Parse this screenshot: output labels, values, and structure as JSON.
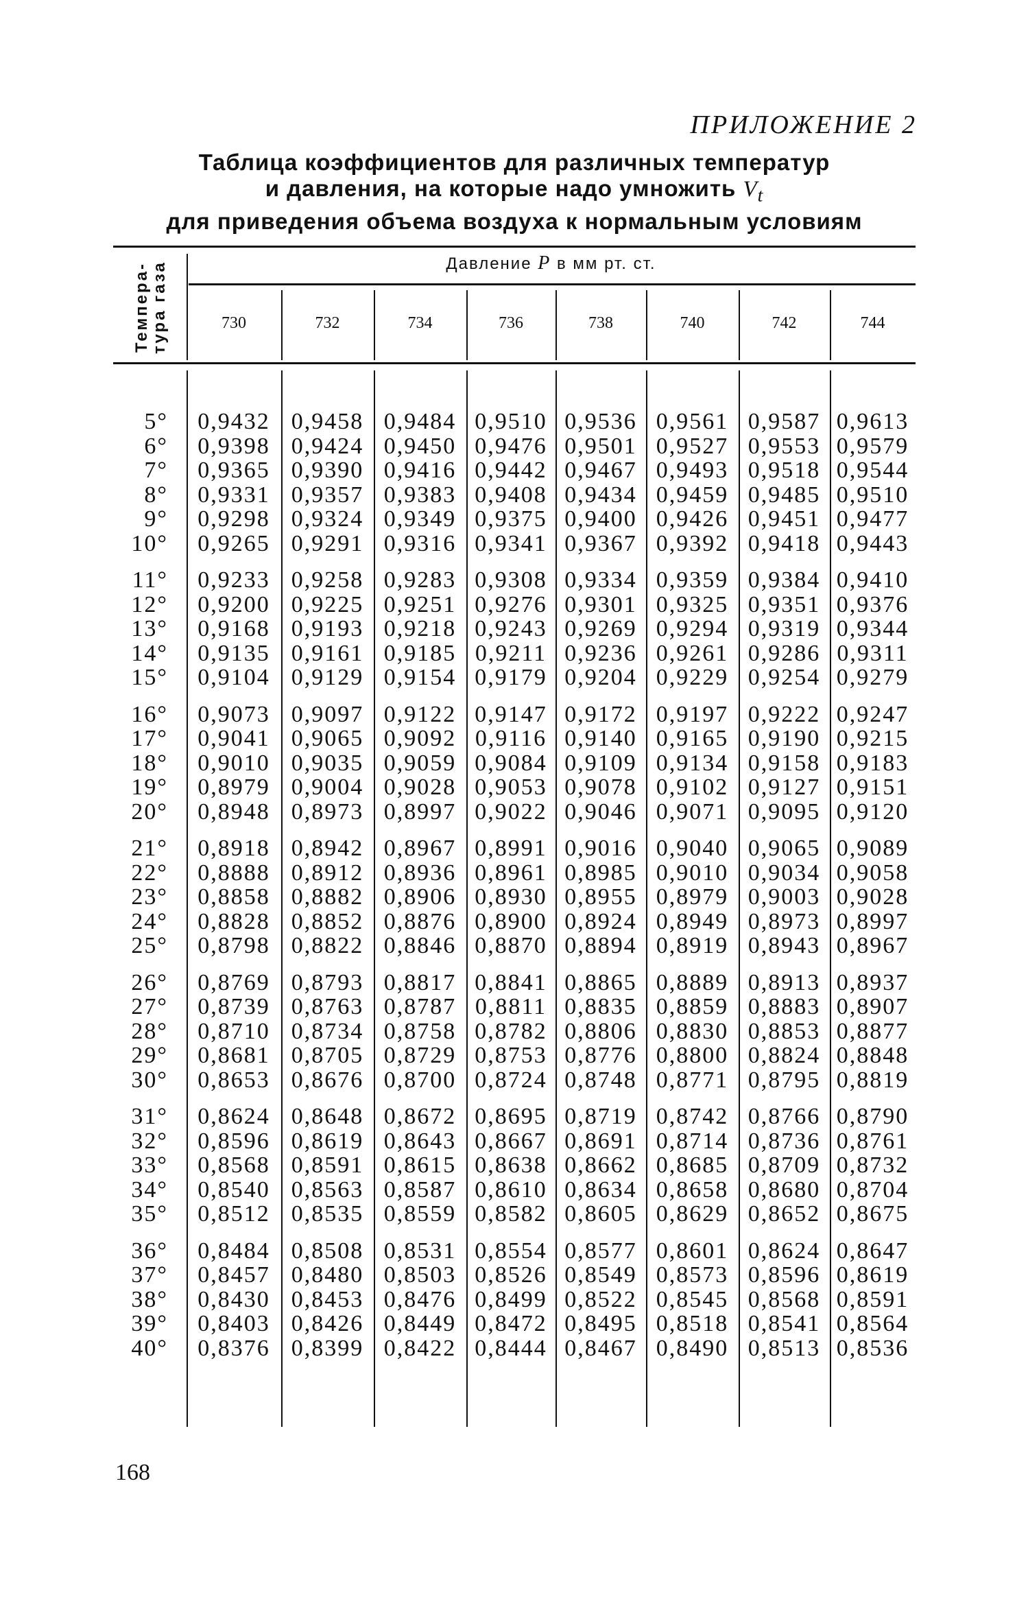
{
  "appendix_label": "ПРИЛОЖЕНИЕ 2",
  "title": {
    "line1": "Таблица коэффициентов для различных температур",
    "line2": "и давления, на которые надо умножить",
    "line2_var": "V",
    "line2_sub": "t",
    "line3": "для приведения объема воздуха к нормальным условиям"
  },
  "table": {
    "temp_header_line1": "Темпера-",
    "temp_header_line2": "тура газа",
    "pressure_header": "Давление",
    "pressure_var": "P",
    "pressure_unit": "в мм рт. ст.",
    "columns": [
      "730",
      "732",
      "734",
      "736",
      "738",
      "740",
      "742",
      "744"
    ],
    "groups": [
      [
        {
          "t": "5°",
          "v": [
            "0,9432",
            "0,9458",
            "0,9484",
            "0,9510",
            "0,9536",
            "0,9561",
            "0,9587",
            "0,9613"
          ]
        },
        {
          "t": "6°",
          "v": [
            "0,9398",
            "0,9424",
            "0,9450",
            "0,9476",
            "0,9501",
            "0,9527",
            "0,9553",
            "0,9579"
          ]
        },
        {
          "t": "7°",
          "v": [
            "0,9365",
            "0,9390",
            "0,9416",
            "0,9442",
            "0,9467",
            "0,9493",
            "0,9518",
            "0,9544"
          ]
        },
        {
          "t": "8°",
          "v": [
            "0,9331",
            "0,9357",
            "0,9383",
            "0,9408",
            "0,9434",
            "0,9459",
            "0,9485",
            "0,9510"
          ]
        },
        {
          "t": "9°",
          "v": [
            "0,9298",
            "0,9324",
            "0,9349",
            "0,9375",
            "0,9400",
            "0,9426",
            "0,9451",
            "0,9477"
          ]
        },
        {
          "t": "10°",
          "v": [
            "0,9265",
            "0,9291",
            "0,9316",
            "0,9341",
            "0,9367",
            "0,9392",
            "0,9418",
            "0,9443"
          ]
        }
      ],
      [
        {
          "t": "11°",
          "v": [
            "0,9233",
            "0,9258",
            "0,9283",
            "0,9308",
            "0,9334",
            "0,9359",
            "0,9384",
            "0,9410"
          ]
        },
        {
          "t": "12°",
          "v": [
            "0,9200",
            "0,9225",
            "0,9251",
            "0,9276",
            "0,9301",
            "0,9325",
            "0,9351",
            "0,9376"
          ]
        },
        {
          "t": "13°",
          "v": [
            "0,9168",
            "0,9193",
            "0,9218",
            "0,9243",
            "0,9269",
            "0,9294",
            "0,9319",
            "0,9344"
          ]
        },
        {
          "t": "14°",
          "v": [
            "0,9135",
            "0,9161",
            "0,9185",
            "0,9211",
            "0,9236",
            "0,9261",
            "0,9286",
            "0,9311"
          ]
        },
        {
          "t": "15°",
          "v": [
            "0,9104",
            "0,9129",
            "0,9154",
            "0,9179",
            "0,9204",
            "0,9229",
            "0,9254",
            "0,9279"
          ]
        }
      ],
      [
        {
          "t": "16°",
          "v": [
            "0,9073",
            "0,9097",
            "0,9122",
            "0,9147",
            "0,9172",
            "0,9197",
            "0,9222",
            "0,9247"
          ]
        },
        {
          "t": "17°",
          "v": [
            "0,9041",
            "0,9065",
            "0,9092",
            "0,9116",
            "0,9140",
            "0,9165",
            "0,9190",
            "0,9215"
          ]
        },
        {
          "t": "18°",
          "v": [
            "0,9010",
            "0,9035",
            "0,9059",
            "0,9084",
            "0,9109",
            "0,9134",
            "0,9158",
            "0,9183"
          ]
        },
        {
          "t": "19°",
          "v": [
            "0,8979",
            "0,9004",
            "0,9028",
            "0,9053",
            "0,9078",
            "0,9102",
            "0,9127",
            "0,9151"
          ]
        },
        {
          "t": "20°",
          "v": [
            "0,8948",
            "0,8973",
            "0,8997",
            "0,9022",
            "0,9046",
            "0,9071",
            "0,9095",
            "0,9120"
          ]
        }
      ],
      [
        {
          "t": "21°",
          "v": [
            "0,8918",
            "0,8942",
            "0,8967",
            "0,8991",
            "0,9016",
            "0,9040",
            "0,9065",
            "0,9089"
          ]
        },
        {
          "t": "22°",
          "v": [
            "0,8888",
            "0,8912",
            "0,8936",
            "0,8961",
            "0,8985",
            "0,9010",
            "0,9034",
            "0,9058"
          ]
        },
        {
          "t": "23°",
          "v": [
            "0,8858",
            "0,8882",
            "0,8906",
            "0,8930",
            "0,8955",
            "0,8979",
            "0,9003",
            "0,9028"
          ]
        },
        {
          "t": "24°",
          "v": [
            "0,8828",
            "0,8852",
            "0,8876",
            "0,8900",
            "0,8924",
            "0,8949",
            "0,8973",
            "0,8997"
          ]
        },
        {
          "t": "25°",
          "v": [
            "0,8798",
            "0,8822",
            "0,8846",
            "0,8870",
            "0,8894",
            "0,8919",
            "0,8943",
            "0,8967"
          ]
        }
      ],
      [
        {
          "t": "26°",
          "v": [
            "0,8769",
            "0,8793",
            "0,8817",
            "0,8841",
            "0,8865",
            "0,8889",
            "0,8913",
            "0,8937"
          ]
        },
        {
          "t": "27°",
          "v": [
            "0,8739",
            "0,8763",
            "0,8787",
            "0,8811",
            "0,8835",
            "0,8859",
            "0,8883",
            "0,8907"
          ]
        },
        {
          "t": "28°",
          "v": [
            "0,8710",
            "0,8734",
            "0,8758",
            "0,8782",
            "0,8806",
            "0,8830",
            "0,8853",
            "0,8877"
          ]
        },
        {
          "t": "29°",
          "v": [
            "0,8681",
            "0,8705",
            "0,8729",
            "0,8753",
            "0,8776",
            "0,8800",
            "0,8824",
            "0,8848"
          ]
        },
        {
          "t": "30°",
          "v": [
            "0,8653",
            "0,8676",
            "0,8700",
            "0,8724",
            "0,8748",
            "0,8771",
            "0,8795",
            "0,8819"
          ]
        }
      ],
      [
        {
          "t": "31°",
          "v": [
            "0,8624",
            "0,8648",
            "0,8672",
            "0,8695",
            "0,8719",
            "0,8742",
            "0,8766",
            "0,8790"
          ]
        },
        {
          "t": "32°",
          "v": [
            "0,8596",
            "0,8619",
            "0,8643",
            "0,8667",
            "0,8691",
            "0,8714",
            "0,8736",
            "0,8761"
          ]
        },
        {
          "t": "33°",
          "v": [
            "0,8568",
            "0,8591",
            "0,8615",
            "0,8638",
            "0,8662",
            "0,8685",
            "0,8709",
            "0,8732"
          ]
        },
        {
          "t": "34°",
          "v": [
            "0,8540",
            "0,8563",
            "0,8587",
            "0,8610",
            "0,8634",
            "0,8658",
            "0,8680",
            "0,8704"
          ]
        },
        {
          "t": "35°",
          "v": [
            "0,8512",
            "0,8535",
            "0,8559",
            "0,8582",
            "0,8605",
            "0,8629",
            "0,8652",
            "0,8675"
          ]
        }
      ],
      [
        {
          "t": "36°",
          "v": [
            "0,8484",
            "0,8508",
            "0,8531",
            "0,8554",
            "0,8577",
            "0,8601",
            "0,8624",
            "0,8647"
          ]
        },
        {
          "t": "37°",
          "v": [
            "0,8457",
            "0,8480",
            "0,8503",
            "0,8526",
            "0,8549",
            "0,8573",
            "0,8596",
            "0,8619"
          ]
        },
        {
          "t": "38°",
          "v": [
            "0,8430",
            "0,8453",
            "0,8476",
            "0,8499",
            "0,8522",
            "0,8545",
            "0,8568",
            "0,8591"
          ]
        },
        {
          "t": "39°",
          "v": [
            "0,8403",
            "0,8426",
            "0,8449",
            "0,8472",
            "0,8495",
            "0,8518",
            "0,8541",
            "0,8564"
          ]
        },
        {
          "t": "40°",
          "v": [
            "0,8376",
            "0,8399",
            "0,8422",
            "0,8444",
            "0,8467",
            "0,8490",
            "0,8513",
            "0,8536"
          ]
        }
      ]
    ]
  },
  "page_number": "168"
}
